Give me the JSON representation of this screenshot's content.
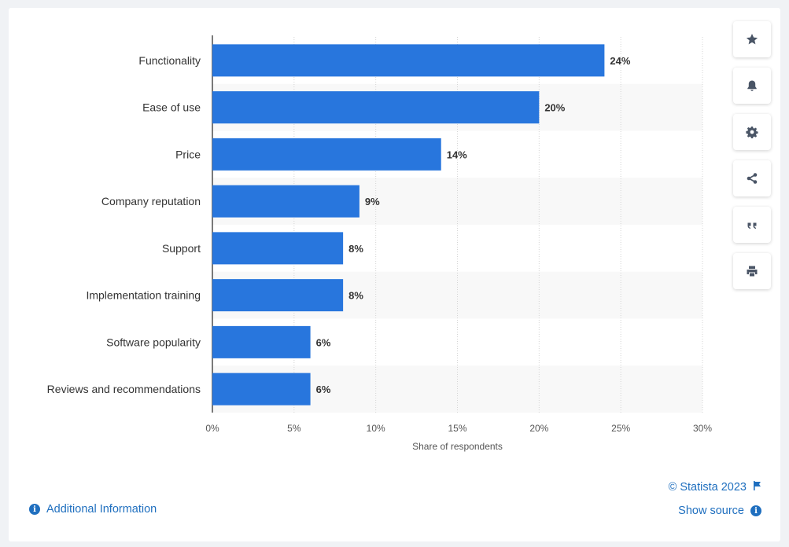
{
  "chart_data": {
    "type": "bar",
    "orientation": "horizontal",
    "categories": [
      "Functionality",
      "Ease of use",
      "Price",
      "Company reputation",
      "Support",
      "Implementation training",
      "Software popularity",
      "Reviews and recommendations"
    ],
    "values": [
      24,
      20,
      14,
      9,
      8,
      8,
      6,
      6
    ],
    "value_labels": [
      "24%",
      "20%",
      "14%",
      "9%",
      "8%",
      "8%",
      "6%",
      "6%"
    ],
    "xlabel": "Share of respondents",
    "xlim": [
      0,
      30
    ],
    "xticks": [
      0,
      5,
      10,
      15,
      20,
      25,
      30
    ],
    "xtick_labels": [
      "0%",
      "5%",
      "10%",
      "15%",
      "20%",
      "25%",
      "30%"
    ],
    "grid": true,
    "bar_color": "#2876dd"
  },
  "toolbar": {
    "buttons": [
      "star-icon",
      "bell-icon",
      "gear-icon",
      "share-icon",
      "quote-icon",
      "print-icon"
    ]
  },
  "footer": {
    "additional_info": "Additional Information",
    "copyright": "© Statista 2023",
    "show_source": "Show source"
  }
}
